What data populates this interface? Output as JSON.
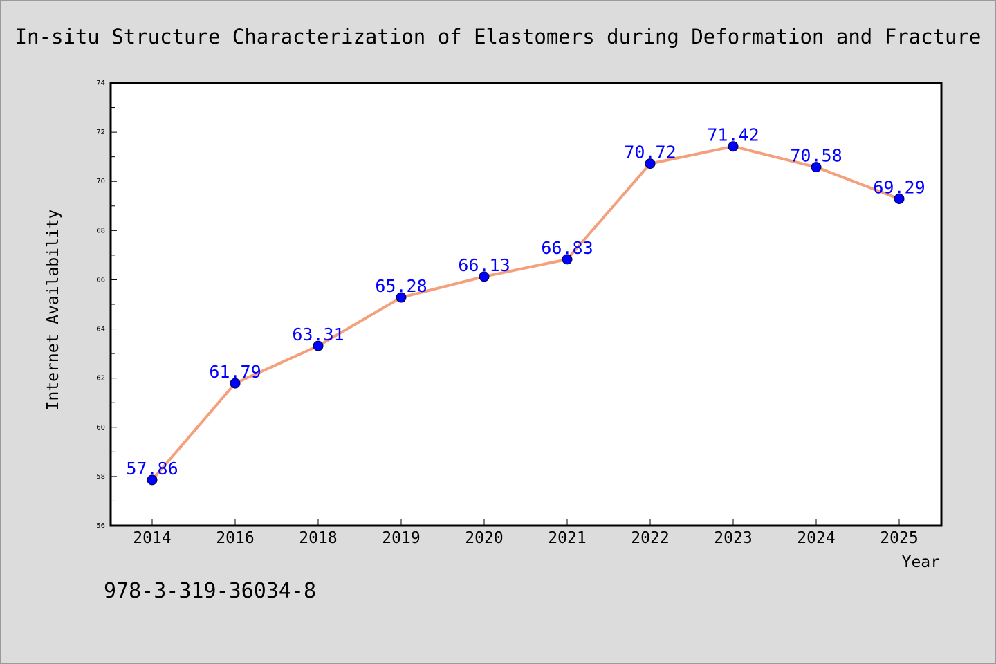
{
  "chart_data": {
    "type": "line",
    "title": "In-situ Structure Characterization of Elastomers during Deformation and Fracture",
    "xlabel": "Year",
    "ylabel": "Internet Availability",
    "categories": [
      "2014",
      "2016",
      "2018",
      "2019",
      "2020",
      "2021",
      "2022",
      "2023",
      "2024",
      "2025"
    ],
    "series": [
      {
        "values": [
          57.86,
          61.79,
          63.31,
          65.28,
          66.13,
          66.83,
          70.72,
          71.42,
          70.58,
          69.29
        ],
        "labels": [
          "57.86",
          "61.79",
          "63.31",
          "65.28",
          "66.13",
          "66.83",
          "70.72",
          "71.42",
          "70.58",
          "69.29"
        ]
      }
    ],
    "ylim": [
      56,
      74
    ],
    "yticks": [
      "56",
      "58",
      "60",
      "62",
      "64",
      "66",
      "68",
      "70",
      "72",
      "74"
    ],
    "grid": false,
    "legend": "none",
    "colors": {
      "line": "#f4a07c",
      "marker": "#0000ff",
      "data_label": "#0000ff",
      "plot_background": "#ffffff",
      "page_background": "#dcdcdc"
    }
  },
  "footer": {
    "isbn": "978-3-319-36034-8"
  }
}
